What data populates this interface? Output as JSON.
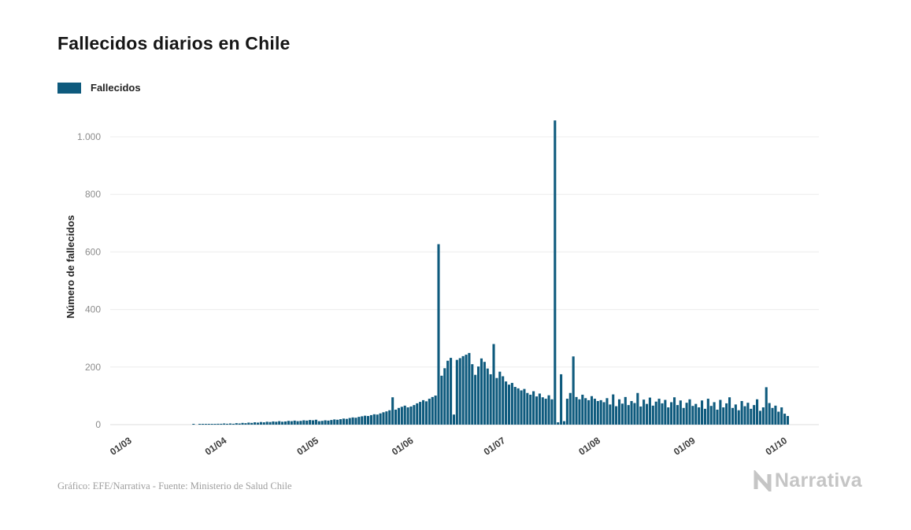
{
  "chart": {
    "title": "Fallecidos diarios en Chile",
    "legend_label": "Fallecidos",
    "y_axis_label": "Número de fallecidos",
    "source_caption": "Gráfico: EFE/Narrativa - Fuente: Ministerio de Salud Chile",
    "accent_color": "#0e5a7d"
  },
  "brand": {
    "wordmark": "Narrativa"
  },
  "chart_data": {
    "type": "bar",
    "title": "Fallecidos diarios en Chile",
    "series_name": "Fallecidos",
    "ylabel": "Número de fallecidos",
    "xlabel": "",
    "grid": "horizontal",
    "legend_position": "top-left",
    "bar_color": "#0e5a7d",
    "ylim": [
      0,
      1100
    ],
    "y_ticks": [
      {
        "label": "0",
        "value": 0
      },
      {
        "label": "200",
        "value": 200
      },
      {
        "label": "400",
        "value": 400
      },
      {
        "label": "600",
        "value": 600
      },
      {
        "label": "800",
        "value": 800
      },
      {
        "label": "1.000",
        "value": 1000
      }
    ],
    "x_ticks": [
      {
        "label": "01/03",
        "day": 0
      },
      {
        "label": "01/04",
        "day": 31
      },
      {
        "label": "01/05",
        "day": 61
      },
      {
        "label": "01/06",
        "day": 92
      },
      {
        "label": "01/07",
        "day": 122
      },
      {
        "label": "01/08",
        "day": 153
      },
      {
        "label": "01/09",
        "day": 184
      },
      {
        "label": "01/10",
        "day": 214
      }
    ],
    "x_start_label": "01/03",
    "x_end_label": "01/10",
    "values": [
      0,
      0,
      0,
      0,
      0,
      0,
      0,
      0,
      0,
      0,
      0,
      0,
      0,
      0,
      0,
      0,
      0,
      0,
      0,
      0,
      1,
      0,
      1,
      1,
      2,
      1,
      2,
      2,
      3,
      3,
      4,
      3,
      4,
      3,
      5,
      4,
      6,
      5,
      7,
      6,
      8,
      7,
      9,
      8,
      10,
      9,
      11,
      10,
      12,
      10,
      11,
      13,
      12,
      14,
      12,
      13,
      15,
      14,
      16,
      15,
      17,
      12,
      13,
      15,
      14,
      16,
      18,
      17,
      19,
      21,
      20,
      23,
      25,
      24,
      27,
      29,
      31,
      30,
      33,
      36,
      35,
      39,
      43,
      46,
      50,
      95,
      52,
      58,
      62,
      66,
      60,
      63,
      68,
      74,
      79,
      85,
      81,
      90,
      96,
      101,
      627,
      170,
      196,
      222,
      232,
      35,
      225,
      231,
      238,
      243,
      249,
      210,
      173,
      202,
      230,
      218,
      195,
      175,
      280,
      162,
      184,
      168,
      150,
      139,
      145,
      131,
      126,
      119,
      124,
      110,
      104,
      116,
      98,
      108,
      95,
      90,
      102,
      88,
      1057,
      8,
      175,
      12,
      90,
      110,
      237,
      96,
      88,
      104,
      92,
      85,
      99,
      90,
      82,
      85,
      78,
      92,
      70,
      105,
      64,
      88,
      73,
      96,
      68,
      82,
      75,
      110,
      63,
      87,
      72,
      94,
      66,
      80,
      90,
      74,
      86,
      60,
      78,
      95,
      68,
      84,
      58,
      76,
      88,
      65,
      72,
      60,
      84,
      55,
      90,
      65,
      78,
      52,
      86,
      60,
      74,
      95,
      58,
      70,
      50,
      82,
      64,
      76,
      55,
      68,
      88,
      48,
      60,
      130,
      75,
      58,
      66,
      45,
      60,
      38,
      30
    ]
  }
}
